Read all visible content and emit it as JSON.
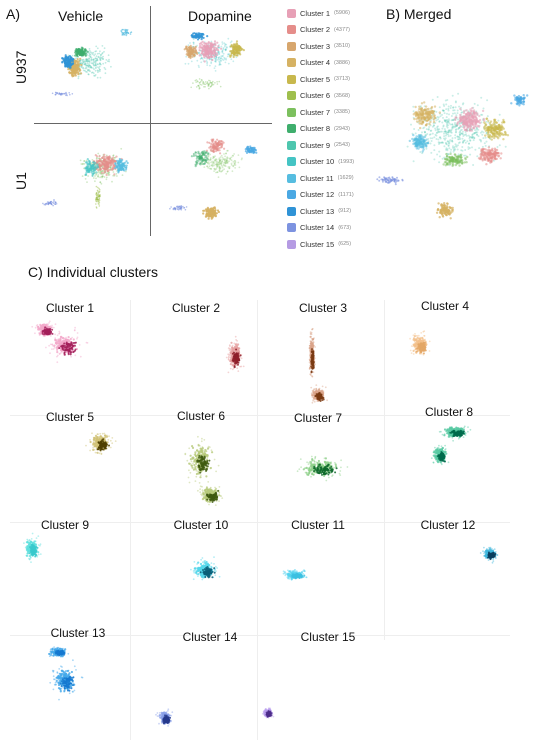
{
  "panelA": {
    "label": "A)",
    "columns": [
      "Vehicle",
      "Dopamine"
    ],
    "rows": [
      "U937",
      "U1"
    ]
  },
  "panelB": {
    "label": "B) Merged"
  },
  "panelC": {
    "label": "C) Individual clusters"
  },
  "legend": [
    {
      "name": "Cluster 1",
      "count": "(5906)",
      "color": "#e7a0b6"
    },
    {
      "name": "Cluster 2",
      "count": "(4377)",
      "color": "#e58d8a"
    },
    {
      "name": "Cluster 3",
      "count": "(3510)",
      "color": "#d7a66d"
    },
    {
      "name": "Cluster 4",
      "count": "(3886)",
      "color": "#d6b263"
    },
    {
      "name": "Cluster 5",
      "count": "(3713)",
      "color": "#c8b84d"
    },
    {
      "name": "Cluster 6",
      "count": "(3568)",
      "color": "#9fbf4d"
    },
    {
      "name": "Cluster 7",
      "count": "(3385)",
      "color": "#7cc05e"
    },
    {
      "name": "Cluster 8",
      "count": "(2943)",
      "color": "#3fae6d"
    },
    {
      "name": "Cluster 9",
      "count": "(2543)",
      "color": "#4ec6ae"
    },
    {
      "name": "Cluster 10",
      "count": "(1993)",
      "color": "#45c4c4"
    },
    {
      "name": "Cluster 11",
      "count": "(1629)",
      "color": "#56bde0"
    },
    {
      "name": "Cluster 12",
      "count": "(1171)",
      "color": "#4aa8e3"
    },
    {
      "name": "Cluster 13",
      "count": "(912)",
      "color": "#2f93d6"
    },
    {
      "name": "Cluster 14",
      "count": "(673)",
      "color": "#7d93e0"
    },
    {
      "name": "Cluster 15",
      "count": "(625)",
      "color": "#b59be3"
    }
  ],
  "clusters": [
    {
      "title": "Cluster 1",
      "color": "#f2a7c9",
      "dark": "#a3205a"
    },
    {
      "title": "Cluster 2",
      "color": "#e6a0a0",
      "dark": "#8e1f2a"
    },
    {
      "title": "Cluster 3",
      "color": "#d9a48a",
      "dark": "#7a3b14"
    },
    {
      "title": "Cluster 4",
      "color": "#f3c18c",
      "dark": "#e3a766"
    },
    {
      "title": "Cluster 5",
      "color": "#cfc074",
      "dark": "#4f3f00"
    },
    {
      "title": "Cluster 6",
      "color": "#b7c97a",
      "dark": "#405a10"
    },
    {
      "title": "Cluster 7",
      "color": "#8fd08a",
      "dark": "#0f6a2d"
    },
    {
      "title": "Cluster 8",
      "color": "#57c9a3",
      "dark": "#006b4c"
    },
    {
      "title": "Cluster 9",
      "color": "#5fe0dd",
      "dark": "#38c9cc"
    },
    {
      "title": "Cluster 10",
      "color": "#52d6ea",
      "dark": "#0a5f79"
    },
    {
      "title": "Cluster 11",
      "color": "#55d3ef",
      "dark": "#3cbfe0"
    },
    {
      "title": "Cluster 12",
      "color": "#3fb6dc",
      "dark": "#0a3f5f"
    },
    {
      "title": "Cluster 13",
      "color": "#45a9ea",
      "dark": "#1679d0"
    },
    {
      "title": "Cluster 14",
      "color": "#8aa0e8",
      "dark": "#263a8c"
    },
    {
      "title": "Cluster 15",
      "color": "#b89cee",
      "dark": "#4e2d8b"
    }
  ]
}
